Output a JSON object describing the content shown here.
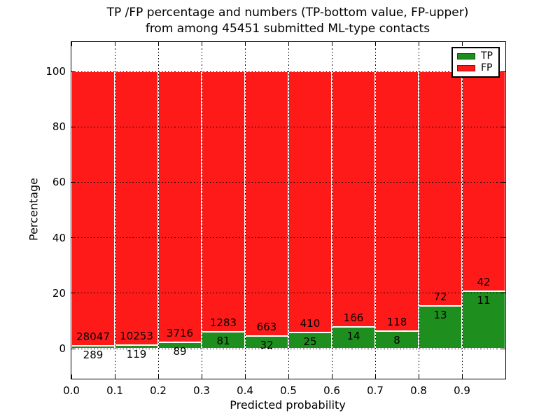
{
  "title": {
    "line1": "TP /FP percentage and numbers (TP-bottom value, FP-upper)",
    "line2": "from among 45451 submitted ML-type contacts"
  },
  "chart_data": {
    "type": "bar",
    "subtype": "stacked-normalized-100pct-histogram",
    "title": "TP /FP percentage and numbers (TP-bottom value, FP-upper) from among 45451 submitted ML-type contacts",
    "xlabel": "Predicted probability",
    "ylabel": "Percentage",
    "xlim": [
      0.0,
      1.0
    ],
    "ylim": [
      -11,
      110.5
    ],
    "bin_width": 0.1,
    "bin_starts": [
      0.0,
      0.1,
      0.2,
      0.3,
      0.4,
      0.5,
      0.6,
      0.7,
      0.8,
      0.9
    ],
    "xtick_labels": [
      "0.0",
      "0.1",
      "0.2",
      "0.3",
      "0.4",
      "0.5",
      "0.6",
      "0.7",
      "0.8",
      "0.9"
    ],
    "yticks": [
      0,
      20,
      40,
      60,
      80,
      100
    ],
    "ytick_labels": [
      "0",
      "20",
      "40",
      "60",
      "80",
      "100"
    ],
    "grid": "dotted, drawn above bars",
    "legend_position": "upper right",
    "series": [
      {
        "name": "TP",
        "color": "#1e8e1e",
        "counts": [
          289,
          119,
          89,
          81,
          32,
          25,
          14,
          8,
          13,
          11
        ]
      },
      {
        "name": "FP",
        "color": "#ff1a1a",
        "counts": [
          28047,
          10253,
          3716,
          1283,
          663,
          410,
          166,
          118,
          72,
          42
        ]
      }
    ],
    "tp_percent_of_bin": [
      1.02,
      1.15,
      2.34,
      5.94,
      4.6,
      5.75,
      7.78,
      6.35,
      15.29,
      20.75
    ]
  },
  "legend": {
    "entries": [
      {
        "label": "TP",
        "color": "#1e8e1e"
      },
      {
        "label": "FP",
        "color": "#ff1a1a"
      }
    ]
  },
  "colors": {
    "tp": "#1e8e1e",
    "fp": "#ff1a1a",
    "background": "#ffffff",
    "text": "#000000",
    "grid": "#000000"
  }
}
